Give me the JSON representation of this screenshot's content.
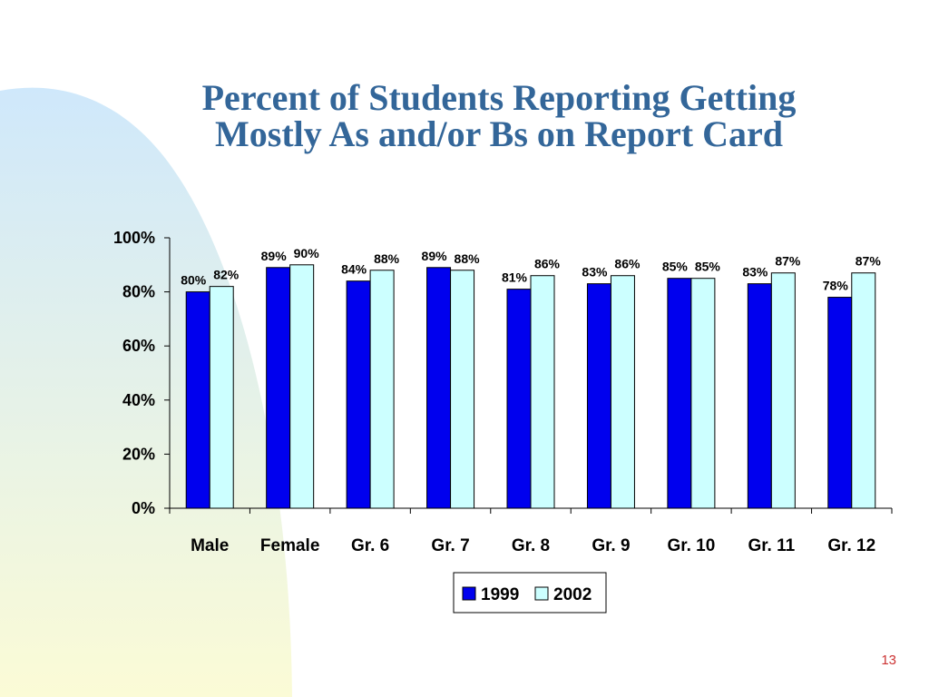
{
  "slide": {
    "title_line1": "Percent of Students Reporting Getting",
    "title_line2": "Mostly As and/or Bs on Report Card",
    "page_number": "13",
    "background_gradient": [
      "#cfe8fb",
      "#fbfbd6"
    ]
  },
  "chart_data": {
    "type": "bar",
    "categories": [
      "Male",
      "Female",
      "Gr. 6",
      "Gr. 7",
      "Gr. 8",
      "Gr. 9",
      "Gr. 10",
      "Gr. 11",
      "Gr. 12"
    ],
    "series": [
      {
        "name": "1999",
        "color": "#0000ee",
        "values": [
          80,
          89,
          84,
          89,
          81,
          83,
          85,
          83,
          78
        ]
      },
      {
        "name": "2002",
        "color": "#ccffff",
        "values": [
          82,
          90,
          88,
          88,
          86,
          86,
          85,
          87,
          87
        ]
      }
    ],
    "data_label_suffix": "%",
    "yticks": [
      "0%",
      "20%",
      "40%",
      "60%",
      "80%",
      "100%"
    ],
    "ylim": [
      0,
      100
    ],
    "legend_position": "bottom",
    "grid": false
  }
}
